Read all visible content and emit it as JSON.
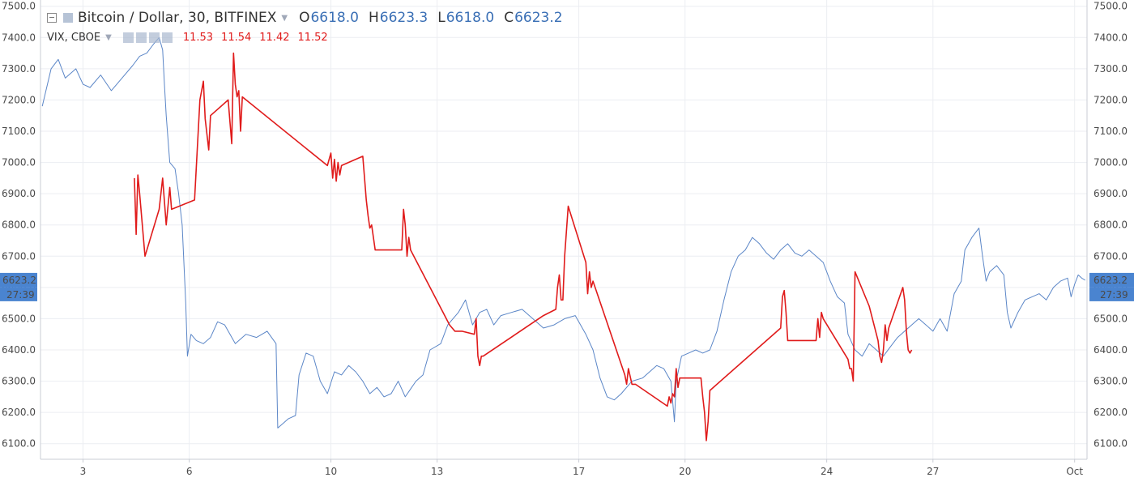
{
  "legend": {
    "main": {
      "title": "Bitcoin / Dollar, 30, BITFINEX",
      "ohlc": [
        {
          "k": "O",
          "v": "6618.0"
        },
        {
          "k": "H",
          "v": "6623.3"
        },
        {
          "k": "L",
          "v": "6618.0"
        },
        {
          "k": "C",
          "v": "6623.2"
        }
      ]
    },
    "sub": {
      "title": "VIX, CBOE",
      "values": [
        "11.53",
        "11.54",
        "11.42",
        "11.52"
      ]
    }
  },
  "badges": {
    "left": {
      "price": "6623.2",
      "countdown": "27:39"
    },
    "right": {
      "price": "6623.2",
      "countdown": "27:39"
    }
  },
  "colors": {
    "btc_line": "#5b86c7",
    "vix_line": "#e01b1b",
    "badge": "#4a84d0",
    "grid": "#eceef2"
  },
  "chart_data": {
    "type": "line",
    "y_axis": {
      "min": 6050,
      "max": 7520,
      "ticks": [
        "6100.0",
        "6200.0",
        "6300.0",
        "6400.0",
        "6500.0",
        "6600.0",
        "6700.0",
        "6800.0",
        "6900.0",
        "7000.0",
        "7100.0",
        "7200.0",
        "7300.0",
        "7400.0",
        "7500.0"
      ]
    },
    "x_axis": {
      "min_day": 1.8,
      "max_day": 31.35,
      "ticks": [
        {
          "day": 3,
          "label": "3"
        },
        {
          "day": 6,
          "label": "6"
        },
        {
          "day": 10,
          "label": "10"
        },
        {
          "day": 13,
          "label": "13"
        },
        {
          "day": 17,
          "label": "17"
        },
        {
          "day": 20,
          "label": "20"
        },
        {
          "day": 24,
          "label": "24"
        },
        {
          "day": 27,
          "label": "27"
        },
        {
          "day": 31,
          "label": "Oct"
        }
      ]
    },
    "grid": true,
    "series": [
      {
        "name": "Bitcoin / Dollar, 30, BITFINEX",
        "points": [
          [
            1.85,
            7180
          ],
          [
            2.1,
            7300
          ],
          [
            2.3,
            7330
          ],
          [
            2.5,
            7270
          ],
          [
            2.8,
            7300
          ],
          [
            3.0,
            7250
          ],
          [
            3.2,
            7240
          ],
          [
            3.5,
            7280
          ],
          [
            3.8,
            7230
          ],
          [
            4.1,
            7270
          ],
          [
            4.4,
            7310
          ],
          [
            4.6,
            7340
          ],
          [
            4.8,
            7350
          ],
          [
            5.0,
            7380
          ],
          [
            5.15,
            7400
          ],
          [
            5.25,
            7360
          ],
          [
            5.3,
            7250
          ],
          [
            5.35,
            7150
          ],
          [
            5.45,
            7000
          ],
          [
            5.6,
            6980
          ],
          [
            5.7,
            6900
          ],
          [
            5.8,
            6800
          ],
          [
            5.9,
            6550
          ],
          [
            5.95,
            6380
          ],
          [
            6.05,
            6450
          ],
          [
            6.2,
            6430
          ],
          [
            6.4,
            6420
          ],
          [
            6.6,
            6440
          ],
          [
            6.8,
            6490
          ],
          [
            7.0,
            6480
          ],
          [
            7.3,
            6420
          ],
          [
            7.6,
            6450
          ],
          [
            7.9,
            6440
          ],
          [
            8.2,
            6460
          ],
          [
            8.45,
            6420
          ],
          [
            8.5,
            6150
          ],
          [
            8.6,
            6160
          ],
          [
            8.8,
            6180
          ],
          [
            9.0,
            6190
          ],
          [
            9.1,
            6320
          ],
          [
            9.3,
            6390
          ],
          [
            9.5,
            6380
          ],
          [
            9.7,
            6300
          ],
          [
            9.9,
            6260
          ],
          [
            10.1,
            6330
          ],
          [
            10.3,
            6320
          ],
          [
            10.5,
            6350
          ],
          [
            10.7,
            6330
          ],
          [
            10.9,
            6300
          ],
          [
            11.1,
            6260
          ],
          [
            11.3,
            6280
          ],
          [
            11.5,
            6250
          ],
          [
            11.7,
            6260
          ],
          [
            11.9,
            6300
          ],
          [
            12.1,
            6250
          ],
          [
            12.4,
            6300
          ],
          [
            12.6,
            6320
          ],
          [
            12.8,
            6400
          ],
          [
            13.1,
            6420
          ],
          [
            13.3,
            6480
          ],
          [
            13.6,
            6520
          ],
          [
            13.8,
            6560
          ],
          [
            14.0,
            6480
          ],
          [
            14.2,
            6520
          ],
          [
            14.4,
            6530
          ],
          [
            14.6,
            6480
          ],
          [
            14.8,
            6510
          ],
          [
            15.1,
            6520
          ],
          [
            15.4,
            6530
          ],
          [
            15.7,
            6500
          ],
          [
            16.0,
            6470
          ],
          [
            16.3,
            6480
          ],
          [
            16.6,
            6500
          ],
          [
            16.9,
            6510
          ],
          [
            17.2,
            6450
          ],
          [
            17.4,
            6400
          ],
          [
            17.6,
            6310
          ],
          [
            17.8,
            6250
          ],
          [
            18.0,
            6240
          ],
          [
            18.2,
            6260
          ],
          [
            18.5,
            6300
          ],
          [
            18.8,
            6310
          ],
          [
            19.0,
            6330
          ],
          [
            19.2,
            6350
          ],
          [
            19.4,
            6340
          ],
          [
            19.6,
            6300
          ],
          [
            19.7,
            6170
          ],
          [
            19.75,
            6300
          ],
          [
            19.9,
            6380
          ],
          [
            20.1,
            6390
          ],
          [
            20.3,
            6400
          ],
          [
            20.5,
            6390
          ],
          [
            20.7,
            6400
          ],
          [
            20.9,
            6460
          ],
          [
            21.1,
            6560
          ],
          [
            21.3,
            6650
          ],
          [
            21.5,
            6700
          ],
          [
            21.7,
            6720
          ],
          [
            21.9,
            6760
          ],
          [
            22.1,
            6740
          ],
          [
            22.3,
            6710
          ],
          [
            22.5,
            6690
          ],
          [
            22.7,
            6720
          ],
          [
            22.9,
            6740
          ],
          [
            23.1,
            6710
          ],
          [
            23.3,
            6700
          ],
          [
            23.5,
            6720
          ],
          [
            23.7,
            6700
          ],
          [
            23.9,
            6680
          ],
          [
            24.1,
            6620
          ],
          [
            24.3,
            6570
          ],
          [
            24.5,
            6550
          ],
          [
            24.6,
            6450
          ],
          [
            24.8,
            6400
          ],
          [
            25.0,
            6380
          ],
          [
            25.2,
            6420
          ],
          [
            25.4,
            6400
          ],
          [
            25.6,
            6380
          ],
          [
            25.8,
            6410
          ],
          [
            26.0,
            6440
          ],
          [
            26.2,
            6460
          ],
          [
            26.4,
            6480
          ],
          [
            26.6,
            6500
          ],
          [
            26.8,
            6480
          ],
          [
            27.0,
            6460
          ],
          [
            27.2,
            6500
          ],
          [
            27.4,
            6460
          ],
          [
            27.6,
            6580
          ],
          [
            27.8,
            6620
          ],
          [
            27.9,
            6720
          ],
          [
            28.1,
            6760
          ],
          [
            28.3,
            6790
          ],
          [
            28.4,
            6700
          ],
          [
            28.5,
            6620
          ],
          [
            28.6,
            6650
          ],
          [
            28.8,
            6670
          ],
          [
            29.0,
            6640
          ],
          [
            29.1,
            6520
          ],
          [
            29.2,
            6470
          ],
          [
            29.4,
            6520
          ],
          [
            29.6,
            6560
          ],
          [
            29.8,
            6570
          ],
          [
            30.0,
            6580
          ],
          [
            30.2,
            6560
          ],
          [
            30.4,
            6600
          ],
          [
            30.6,
            6620
          ],
          [
            30.8,
            6630
          ],
          [
            30.9,
            6570
          ],
          [
            31.0,
            6610
          ],
          [
            31.1,
            6640
          ],
          [
            31.2,
            6630
          ],
          [
            31.3,
            6623
          ]
        ]
      },
      {
        "name": "VIX, CBOE",
        "points": [
          [
            4.45,
            6950
          ],
          [
            4.5,
            6770
          ],
          [
            4.55,
            6960
          ],
          [
            4.6,
            6900
          ],
          [
            4.75,
            6700
          ],
          [
            5.15,
            6850
          ],
          [
            5.25,
            6950
          ],
          [
            5.35,
            6800
          ],
          [
            5.45,
            6920
          ],
          [
            5.5,
            6850
          ],
          [
            6.15,
            6880
          ],
          [
            6.3,
            7200
          ],
          [
            6.4,
            7260
          ],
          [
            6.45,
            7140
          ],
          [
            6.55,
            7040
          ],
          [
            6.6,
            7150
          ],
          [
            7.1,
            7200
          ],
          [
            7.2,
            7060
          ],
          [
            7.25,
            7350
          ],
          [
            7.3,
            7250
          ],
          [
            7.35,
            7210
          ],
          [
            7.4,
            7230
          ],
          [
            7.45,
            7100
          ],
          [
            7.5,
            7210
          ],
          [
            9.9,
            6990
          ],
          [
            10.0,
            7030
          ],
          [
            10.05,
            6950
          ],
          [
            10.1,
            7010
          ],
          [
            10.15,
            6940
          ],
          [
            10.2,
            7000
          ],
          [
            10.25,
            6960
          ],
          [
            10.3,
            6990
          ],
          [
            10.9,
            7020
          ],
          [
            11.0,
            6880
          ],
          [
            11.05,
            6830
          ],
          [
            11.1,
            6790
          ],
          [
            11.15,
            6800
          ],
          [
            11.25,
            6720
          ],
          [
            12.0,
            6720
          ],
          [
            12.05,
            6850
          ],
          [
            12.1,
            6800
          ],
          [
            12.15,
            6700
          ],
          [
            12.2,
            6760
          ],
          [
            12.25,
            6720
          ],
          [
            13.35,
            6480
          ],
          [
            13.5,
            6460
          ],
          [
            13.7,
            6460
          ],
          [
            14.05,
            6450
          ],
          [
            14.1,
            6500
          ],
          [
            14.15,
            6380
          ],
          [
            14.2,
            6350
          ],
          [
            14.25,
            6380
          ],
          [
            14.3,
            6380
          ],
          [
            16.0,
            6510
          ],
          [
            16.35,
            6530
          ],
          [
            16.4,
            6600
          ],
          [
            16.45,
            6640
          ],
          [
            16.5,
            6560
          ],
          [
            16.55,
            6560
          ],
          [
            16.6,
            6700
          ],
          [
            16.7,
            6860
          ],
          [
            17.2,
            6680
          ],
          [
            17.25,
            6580
          ],
          [
            17.3,
            6650
          ],
          [
            17.35,
            6600
          ],
          [
            17.4,
            6620
          ],
          [
            18.3,
            6320
          ],
          [
            18.35,
            6290
          ],
          [
            18.4,
            6340
          ],
          [
            18.5,
            6290
          ],
          [
            18.6,
            6290
          ],
          [
            19.5,
            6220
          ],
          [
            19.55,
            6250
          ],
          [
            19.6,
            6230
          ],
          [
            19.65,
            6260
          ],
          [
            19.7,
            6250
          ],
          [
            19.75,
            6340
          ],
          [
            19.8,
            6280
          ],
          [
            19.85,
            6310
          ],
          [
            20.45,
            6310
          ],
          [
            20.5,
            6250
          ],
          [
            20.55,
            6200
          ],
          [
            20.6,
            6110
          ],
          [
            20.65,
            6170
          ],
          [
            20.7,
            6270
          ],
          [
            22.7,
            6470
          ],
          [
            22.75,
            6570
          ],
          [
            22.8,
            6590
          ],
          [
            22.85,
            6520
          ],
          [
            22.9,
            6430
          ],
          [
            23.7,
            6430
          ],
          [
            23.75,
            6500
          ],
          [
            23.8,
            6440
          ],
          [
            23.85,
            6520
          ],
          [
            23.9,
            6500
          ],
          [
            24.6,
            6370
          ],
          [
            24.65,
            6340
          ],
          [
            24.7,
            6340
          ],
          [
            24.75,
            6300
          ],
          [
            24.8,
            6650
          ],
          [
            25.2,
            6540
          ],
          [
            25.45,
            6430
          ],
          [
            25.5,
            6380
          ],
          [
            25.55,
            6360
          ],
          [
            25.6,
            6400
          ],
          [
            25.65,
            6480
          ],
          [
            25.7,
            6430
          ],
          [
            25.75,
            6470
          ],
          [
            26.15,
            6600
          ],
          [
            26.2,
            6560
          ],
          [
            26.25,
            6460
          ],
          [
            26.3,
            6400
          ],
          [
            26.35,
            6390
          ],
          [
            26.4,
            6400
          ]
        ]
      }
    ]
  }
}
